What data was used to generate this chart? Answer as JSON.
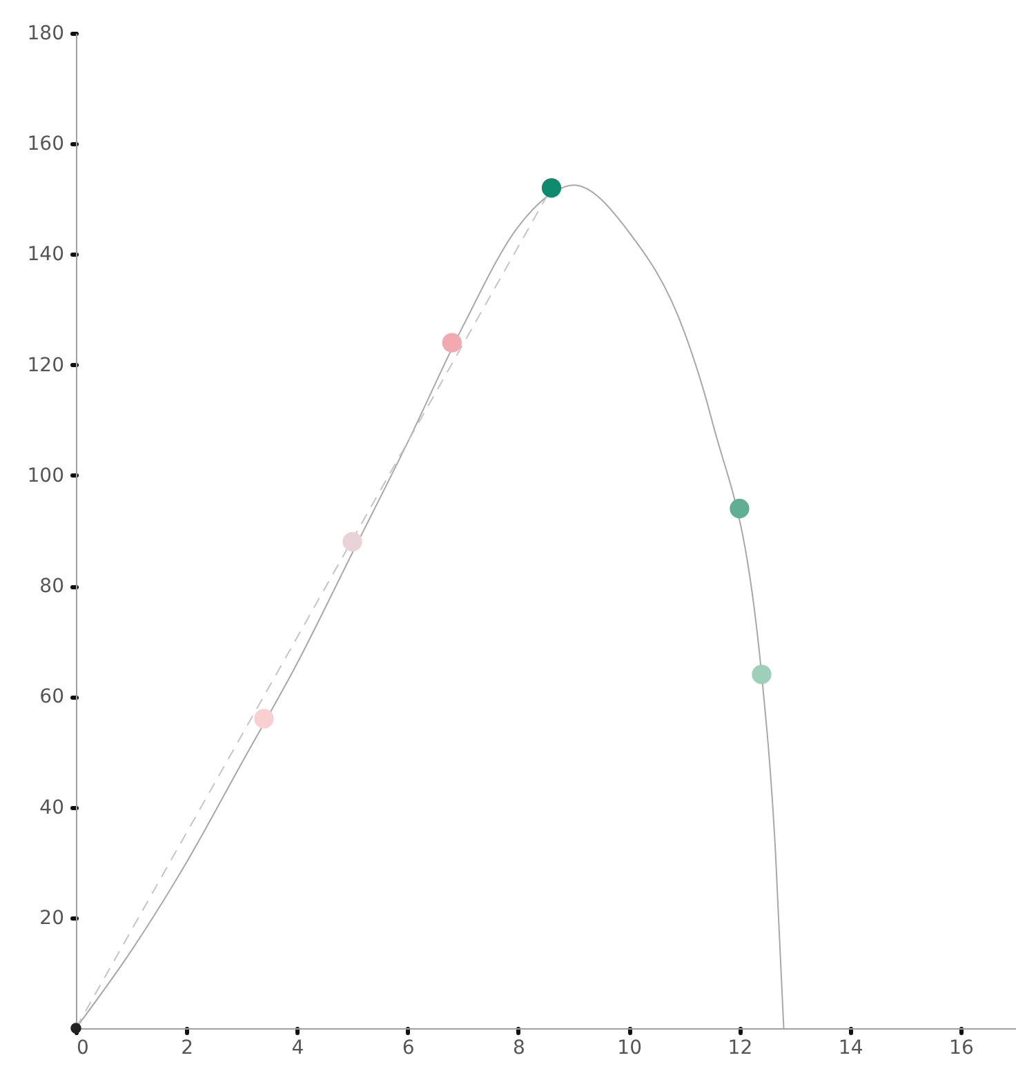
{
  "chart_data": {
    "type": "line",
    "xlim": [
      0,
      17
    ],
    "ylim": [
      0,
      180
    ],
    "xticks": [
      0,
      2,
      4,
      6,
      8,
      10,
      12,
      14,
      16
    ],
    "yticks": [
      20,
      40,
      60,
      80,
      100,
      120,
      140,
      160,
      180
    ],
    "series": [
      {
        "color": "#a8a8a8",
        "line_style": "solid",
        "x": [
          0,
          1,
          2,
          3,
          4,
          5,
          6,
          7,
          8,
          8.6,
          9,
          10,
          11,
          11.5,
          12.4,
          12.65,
          12.8
        ],
        "values": [
          0,
          14,
          30,
          48,
          66,
          86,
          106,
          127,
          145,
          151,
          152.5,
          144,
          126,
          110,
          64,
          32,
          0
        ]
      },
      {
        "color": "#c4c4c4",
        "line_style": "dashed",
        "x": [
          0,
          8.6
        ],
        "values": [
          0,
          152
        ]
      },
      {
        "type": "scatter",
        "marker": "circle",
        "x": [
          3.4,
          5.0,
          6.8,
          8.6,
          12.0,
          12.4
        ],
        "values": [
          56,
          88,
          124,
          152,
          94,
          64
        ],
        "colors": [
          "#f9d0cf",
          "#e9d2d8",
          "#f3a9b0",
          "#0e8a6e",
          "#60ae94",
          "#9dcfbb"
        ]
      },
      {
        "type": "scatter",
        "marker": "circle",
        "color": "#222222",
        "x": [
          0
        ],
        "values": [
          0
        ]
      }
    ]
  }
}
